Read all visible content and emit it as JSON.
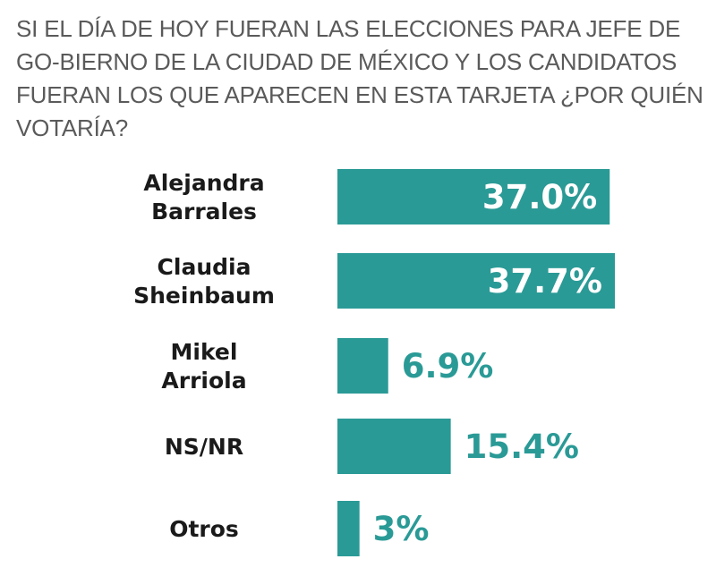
{
  "chart_data": {
    "type": "bar",
    "orientation": "horizontal",
    "title": "SI EL DÍA DE HOY FUERAN LAS ELECCIONES PARA JEFE DE GO-BIERNO DE LA CIUDAD DE MÉXICO Y LOS CANDIDATOS FUERAN LOS QUE APARECEN EN ESTA TARJETA ¿POR QUIÉN VOTARÍA?",
    "categories": [
      [
        "Alejandra",
        "Barrales"
      ],
      [
        "Claudia",
        "Sheinbaum"
      ],
      [
        "Mikel",
        "Arriola"
      ],
      [
        "NS/NR"
      ],
      [
        "Otros"
      ]
    ],
    "values": [
      37.0,
      37.7,
      6.9,
      15.4,
      3
    ],
    "value_labels": [
      "37.0%",
      "37.7%",
      "6.9%",
      "15.4%",
      "3%"
    ],
    "label_inside": [
      true,
      true,
      false,
      false,
      false
    ],
    "colors": {
      "bar": "#2a9a96",
      "label_inside": "#ffffff",
      "label_outside": "#2a9a96"
    }
  }
}
